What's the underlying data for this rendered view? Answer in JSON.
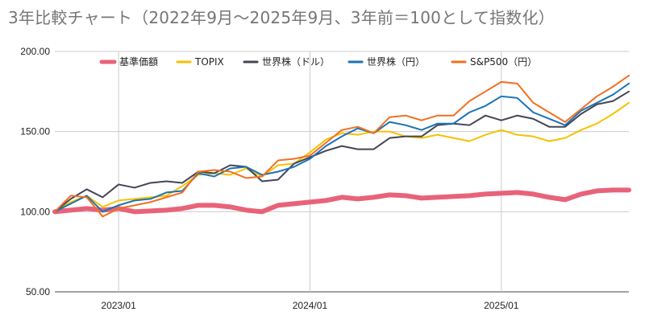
{
  "chart_data": {
    "type": "line",
    "title": "3年比較チャート（2022年9月〜2025年9月、3年前＝100として指数化）",
    "xlabel": "",
    "ylabel": "",
    "ylim": [
      50,
      200
    ],
    "yticks": [
      50,
      100,
      150,
      200
    ],
    "ytick_labels": [
      "50.00",
      "100.00",
      "150.00",
      "200.00"
    ],
    "xtick_labels": [
      "2023/01",
      "2024/01",
      "2025/01"
    ],
    "xtick_positions": [
      4,
      16,
      28
    ],
    "legend_position": "top",
    "grid": true,
    "x": [
      "2022/09",
      "2022/10",
      "2022/11",
      "2022/12",
      "2023/01",
      "2023/02",
      "2023/03",
      "2023/04",
      "2023/05",
      "2023/06",
      "2023/07",
      "2023/08",
      "2023/09",
      "2023/10",
      "2023/11",
      "2023/12",
      "2024/01",
      "2024/02",
      "2024/03",
      "2024/04",
      "2024/05",
      "2024/06",
      "2024/07",
      "2024/08",
      "2024/09",
      "2024/10",
      "2024/11",
      "2024/12",
      "2025/01",
      "2025/02",
      "2025/03",
      "2025/04",
      "2025/05",
      "2025/06",
      "2025/07",
      "2025/08",
      "2025/09"
    ],
    "series": [
      {
        "name": "基準価額",
        "color": "#e8637a",
        "width": 6,
        "values": [
          100,
          101,
          102,
          101,
          102,
          100,
          100.5,
          101,
          102,
          104,
          104,
          103,
          101,
          100,
          104,
          105,
          106,
          107,
          109,
          108,
          109,
          110.5,
          110,
          108.5,
          109,
          109.5,
          110,
          111,
          111.5,
          112,
          111,
          109,
          107.5,
          111,
          113,
          113.5,
          113.5
        ]
      },
      {
        "name": "TOPIX",
        "color": "#f5c200",
        "width": 2,
        "values": [
          100,
          106,
          110,
          103,
          107,
          108,
          109,
          110,
          116,
          123,
          124,
          123,
          127,
          122,
          129,
          130,
          137,
          145,
          149,
          148,
          150,
          150,
          147,
          146,
          148,
          146,
          144,
          148,
          151,
          148,
          147,
          144,
          146,
          151,
          155,
          161,
          168
        ]
      },
      {
        "name": "世界株（ドル）",
        "color": "#434556",
        "width": 2,
        "values": [
          100,
          108,
          114,
          109,
          117,
          115,
          118,
          119,
          118,
          125,
          124,
          129,
          128,
          119,
          120,
          130,
          134,
          138,
          141,
          139,
          139,
          146,
          147,
          147,
          154,
          155,
          154,
          160,
          157,
          160,
          158,
          153,
          153,
          161,
          167,
          169,
          175
        ]
      },
      {
        "name": "世界株（円）",
        "color": "#1a73b8",
        "width": 2,
        "values": [
          100,
          105,
          110,
          100,
          104,
          107,
          108,
          112,
          113,
          124,
          122,
          127,
          128,
          123,
          125,
          128,
          133,
          141,
          147,
          152,
          149,
          156,
          154,
          151,
          155,
          155,
          162,
          166,
          172,
          171,
          162,
          158,
          154,
          163,
          168,
          173,
          180
        ]
      },
      {
        "name": "S&P500（円）",
        "color": "#f26f21",
        "width": 2,
        "values": [
          100,
          110,
          109,
          97,
          102,
          104,
          106,
          109,
          112,
          125,
          126,
          125,
          121,
          122,
          132,
          133,
          135,
          143,
          151,
          153,
          149,
          159,
          160,
          157,
          160,
          160,
          169,
          175,
          181,
          180,
          168,
          162,
          156,
          164,
          172,
          178,
          185
        ]
      }
    ]
  }
}
